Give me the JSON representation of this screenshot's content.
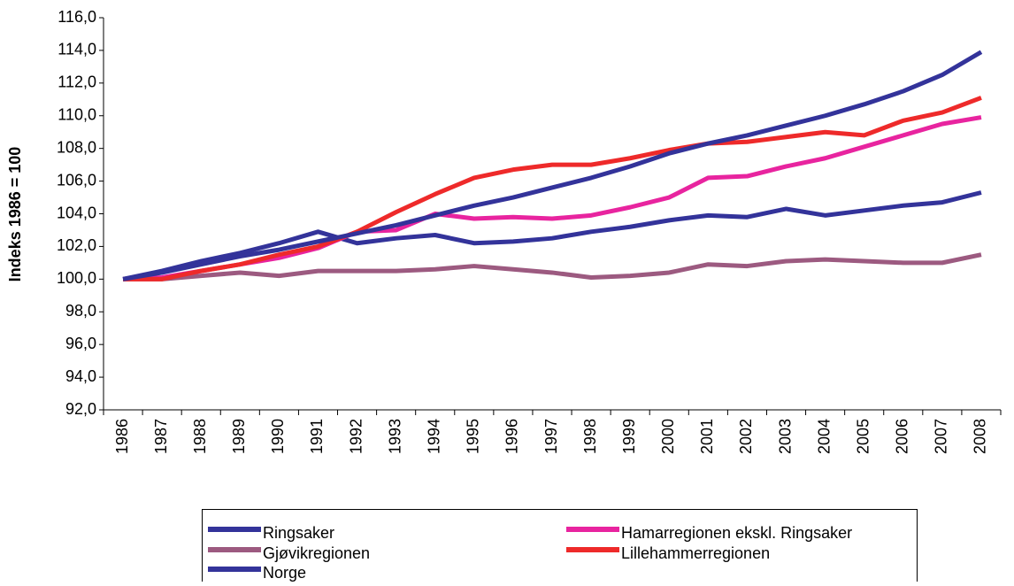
{
  "chart_data": {
    "type": "line",
    "y_label": "Indeks 1986 = 100",
    "categories": [
      "1986",
      "1987",
      "1988",
      "1989",
      "1990",
      "1991",
      "1992",
      "1993",
      "1994",
      "1995",
      "1996",
      "1997",
      "1998",
      "1999",
      "2000",
      "2001",
      "2002",
      "2003",
      "2004",
      "2005",
      "2006",
      "2007",
      "2008"
    ],
    "series": [
      {
        "name": "Ringsaker",
        "color": "#33339a",
        "values": [
          100,
          100.5,
          101.1,
          101.6,
          102.2,
          102.9,
          102.2,
          102.5,
          102.7,
          102.2,
          102.3,
          102.5,
          102.9,
          103.2,
          103.6,
          103.9,
          103.8,
          104.3,
          103.9,
          104.2,
          104.5,
          104.7,
          105.3
        ]
      },
      {
        "name": "Hamarregionen ekskl. Ringsaker",
        "color": "#e8249f",
        "values": [
          100,
          100.1,
          100.5,
          100.9,
          101.3,
          101.9,
          102.9,
          103.0,
          104.0,
          103.7,
          103.8,
          103.7,
          103.9,
          104.4,
          105.0,
          106.2,
          106.3,
          106.9,
          107.4,
          108.1,
          108.8,
          109.5,
          109.9
        ]
      },
      {
        "name": "Gjøvikregionen",
        "color": "#9c5a80",
        "values": [
          100,
          100,
          100.2,
          100.4,
          100.2,
          100.5,
          100.5,
          100.5,
          100.6,
          100.8,
          100.6,
          100.4,
          100.1,
          100.2,
          100.4,
          100.9,
          100.8,
          101.1,
          101.2,
          101.1,
          101.0,
          101.0,
          101.5
        ]
      },
      {
        "name": "Lillehammerregionen",
        "color": "#ee2a2a",
        "values": [
          100,
          100,
          100.5,
          100.9,
          101.5,
          102.0,
          102.9,
          104.1,
          105.2,
          106.2,
          106.7,
          107.0,
          107.0,
          107.4,
          107.9,
          108.3,
          108.4,
          108.7,
          109.0,
          108.8,
          109.7,
          110.2,
          111.1
        ]
      },
      {
        "name": "Norge",
        "color": "#33339a",
        "values": [
          100,
          100.4,
          100.9,
          101.4,
          101.8,
          102.3,
          102.8,
          103.3,
          103.9,
          104.5,
          105.0,
          105.6,
          106.2,
          106.9,
          107.7,
          108.3,
          108.8,
          109.4,
          110.0,
          110.7,
          111.5,
          112.5,
          113.9
        ]
      }
    ],
    "ylim": [
      92,
      116
    ],
    "yticks": [
      {
        "value": 92,
        "label": "92,0"
      },
      {
        "value": 94,
        "label": "94,0"
      },
      {
        "value": 96,
        "label": "96,0"
      },
      {
        "value": 98,
        "label": "98,0"
      },
      {
        "value": 100,
        "label": "100,0"
      },
      {
        "value": 102,
        "label": "102,0"
      },
      {
        "value": 104,
        "label": "104,0"
      },
      {
        "value": 106,
        "label": "106,0"
      },
      {
        "value": 108,
        "label": "108,0"
      },
      {
        "value": 110,
        "label": "110,0"
      },
      {
        "value": 112,
        "label": "112,0"
      },
      {
        "value": 114,
        "label": "114,0"
      },
      {
        "value": 116,
        "label": "116,0"
      }
    ],
    "grid": false,
    "legend": "bottom"
  }
}
